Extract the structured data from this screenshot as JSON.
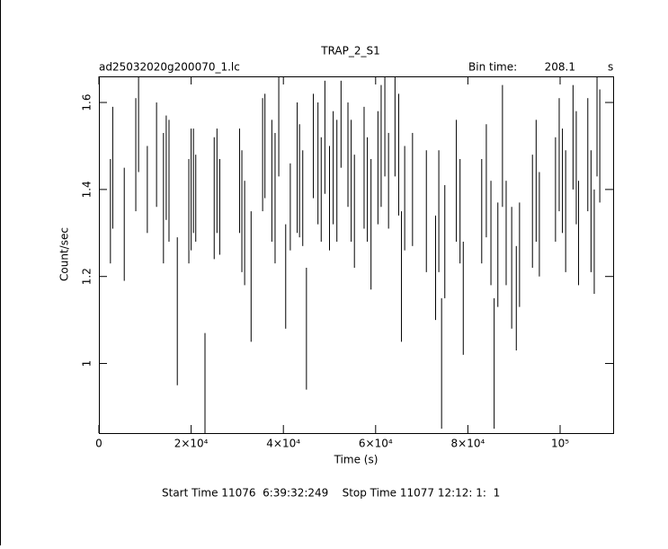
{
  "chart_data": {
    "type": "errorbar",
    "title": "TRAP_2_S1",
    "subtitle": "ad25032020g200070_1.lc",
    "bin_time_label": "Bin time:",
    "bin_time": 208.1,
    "bin_time_unit": "s",
    "x_label": "Time (s)",
    "y_label": "Count/sec",
    "footer": "Start Time 11076  6:39:32:249    Stop Time 11077 12:12: 1:  1",
    "color": "#000000",
    "xlim": [
      0,
      111500
    ],
    "ylim": [
      0.84,
      1.66
    ],
    "xticks": [
      0,
      {
        "value": 20000,
        "label": "2×10⁴"
      },
      {
        "value": 40000,
        "label": "4×10⁴"
      },
      {
        "value": 60000,
        "label": "6×10⁴"
      },
      {
        "value": 80000,
        "label": "8×10⁴"
      },
      {
        "value": 100000,
        "label": "10⁵"
      }
    ],
    "yticks": [
      1,
      1.2,
      1.4,
      1.6
    ],
    "x": [
      2500,
      3000,
      5500,
      8000,
      8600,
      10500,
      12500,
      14000,
      14600,
      15200,
      17000,
      19500,
      20000,
      20500,
      21000,
      23000,
      25000,
      25600,
      26200,
      30500,
      31000,
      31600,
      33000,
      35500,
      36000,
      37500,
      38200,
      39000,
      40500,
      41500,
      43000,
      43500,
      44200,
      45000,
      46500,
      47500,
      48200,
      49000,
      50000,
      50800,
      51600,
      52500,
      54000,
      54700,
      55400,
      57500,
      58200,
      59000,
      60500,
      61200,
      62000,
      62800,
      64200,
      65000,
      65600,
      66300,
      68000,
      71000,
      73000,
      73700,
      74300,
      75000,
      77500,
      78300,
      79000,
      83000,
      84000,
      85000,
      85700,
      86500,
      87500,
      88300,
      89500,
      90500,
      91200,
      94000,
      94800,
      95500,
      99000,
      99800,
      100500,
      101200,
      102800,
      103500,
      104000,
      106000,
      106700,
      107400,
      108000,
      108600
    ],
    "values": [
      1.35,
      1.45,
      1.32,
      1.48,
      1.55,
      1.4,
      1.48,
      1.38,
      1.45,
      1.42,
      1.12,
      1.35,
      1.4,
      1.42,
      1.38,
      0.95,
      1.38,
      1.42,
      1.36,
      1.42,
      1.35,
      1.3,
      1.2,
      1.48,
      1.5,
      1.42,
      1.38,
      1.55,
      1.2,
      1.36,
      1.45,
      1.42,
      1.38,
      1.08,
      1.5,
      1.46,
      1.4,
      1.52,
      1.38,
      1.45,
      1.42,
      1.55,
      1.48,
      1.42,
      1.35,
      1.45,
      1.4,
      1.32,
      1.45,
      1.5,
      1.55,
      1.42,
      1.55,
      1.48,
      1.2,
      1.38,
      1.4,
      1.35,
      1.22,
      1.35,
      1.0,
      1.28,
      1.42,
      1.35,
      1.15,
      1.35,
      1.42,
      1.3,
      1.0,
      1.25,
      1.5,
      1.3,
      1.22,
      1.15,
      1.25,
      1.35,
      1.42,
      1.32,
      1.4,
      1.48,
      1.42,
      1.35,
      1.52,
      1.45,
      1.3,
      1.48,
      1.35,
      1.28,
      1.55,
      1.5
    ],
    "errors": [
      0.12,
      0.14,
      0.13,
      0.13,
      0.11,
      0.1,
      0.12,
      0.15,
      0.12,
      0.14,
      0.17,
      0.12,
      0.14,
      0.12,
      0.1,
      0.12,
      0.14,
      0.12,
      0.11,
      0.12,
      0.14,
      0.12,
      0.15,
      0.13,
      0.12,
      0.14,
      0.15,
      0.12,
      0.12,
      0.1,
      0.15,
      0.13,
      0.11,
      0.14,
      0.12,
      0.14,
      0.12,
      0.13,
      0.12,
      0.13,
      0.14,
      0.1,
      0.12,
      0.14,
      0.13,
      0.14,
      0.12,
      0.15,
      0.13,
      0.14,
      0.12,
      0.11,
      0.12,
      0.14,
      0.15,
      0.12,
      0.13,
      0.14,
      0.12,
      0.14,
      0.15,
      0.13,
      0.14,
      0.12,
      0.13,
      0.12,
      0.13,
      0.12,
      0.15,
      0.12,
      0.14,
      0.12,
      0.14,
      0.12,
      0.12,
      0.13,
      0.14,
      0.12,
      0.12,
      0.13,
      0.12,
      0.14,
      0.12,
      0.13,
      0.12,
      0.13,
      0.14,
      0.12,
      0.12,
      0.13
    ]
  }
}
